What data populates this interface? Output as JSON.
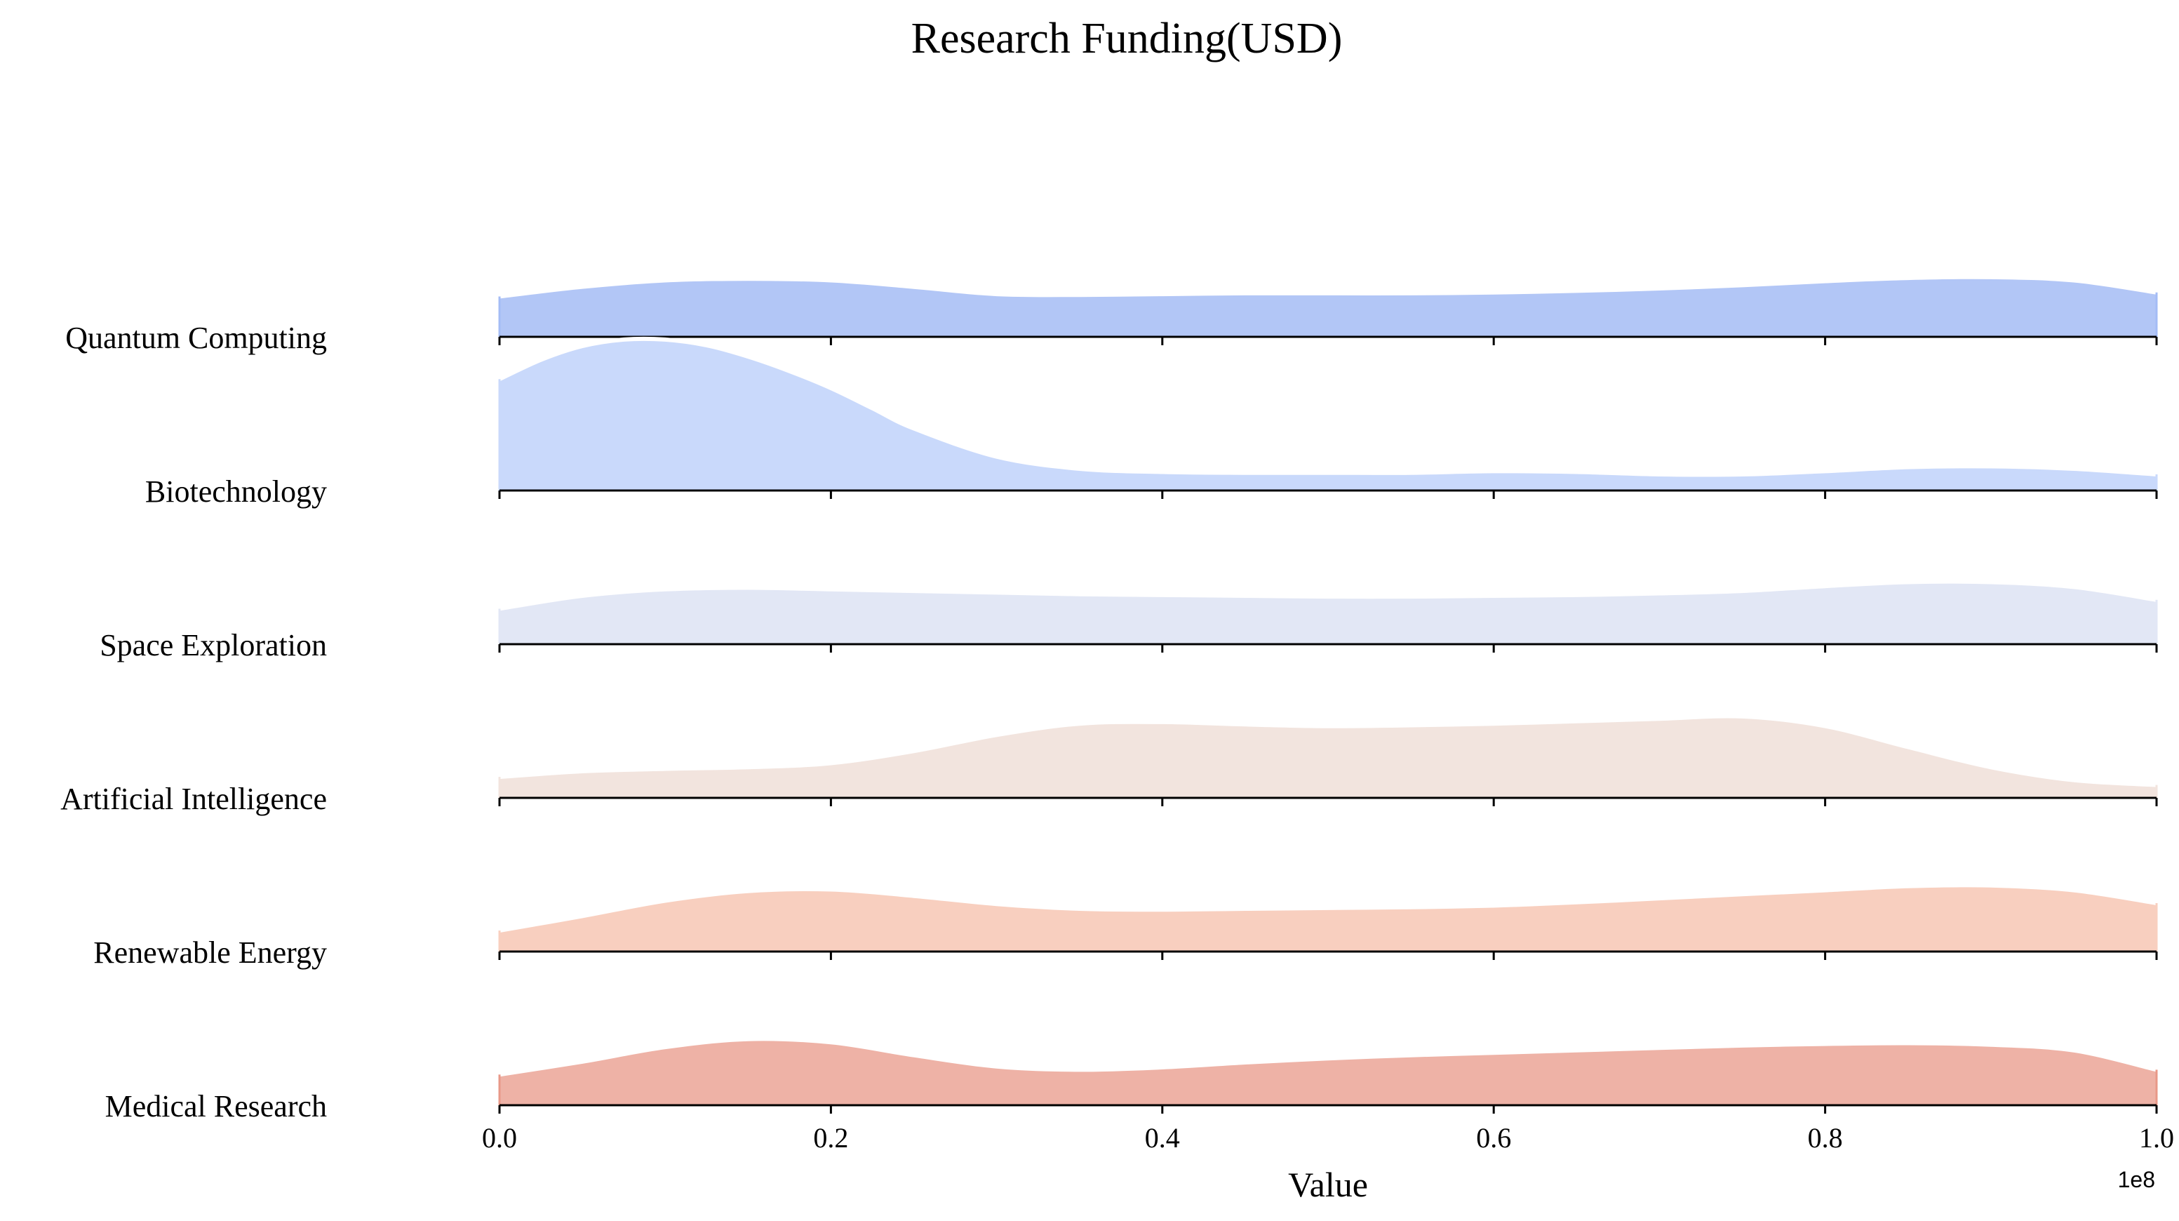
{
  "chart_data": {
    "type": "ridgeline",
    "title": "Research Funding(USD)",
    "xlabel": "Value",
    "x_offset_label": "1e8",
    "xlim": [
      0,
      100000000
    ],
    "x_ticks": [
      0,
      20000000,
      40000000,
      60000000,
      80000000,
      100000000
    ],
    "x_tick_labels": [
      "0.0",
      "0.2",
      "0.4",
      "0.6",
      "0.8",
      "1.0"
    ],
    "series": [
      {
        "name": "Quantum Computing",
        "color": "#a4bcf5",
        "fill_opacity": 0.85,
        "x": [
          0,
          5000000,
          10000000,
          15000000,
          20000000,
          25000000,
          30000000,
          35000000,
          40000000,
          45000000,
          50000000,
          55000000,
          60000000,
          65000000,
          70000000,
          75000000,
          80000000,
          85000000,
          90000000,
          95000000,
          100000000
        ],
        "density": [
          0.5,
          0.62,
          0.7,
          0.72,
          0.7,
          0.62,
          0.53,
          0.52,
          0.53,
          0.54,
          0.54,
          0.54,
          0.55,
          0.57,
          0.6,
          0.64,
          0.69,
          0.73,
          0.74,
          0.7,
          0.55
        ]
      },
      {
        "name": "Biotechnology",
        "color": "#c9d9fb",
        "fill_opacity": 1,
        "x": [
          0,
          2500000,
          5000000,
          7500000,
          10000000,
          12500000,
          15000000,
          17500000,
          20000000,
          22500000,
          25000000,
          30000000,
          35000000,
          40000000,
          45000000,
          50000000,
          55000000,
          60000000,
          65000000,
          70000000,
          75000000,
          80000000,
          85000000,
          90000000,
          95000000,
          100000000
        ],
        "density": [
          1.38,
          1.62,
          1.79,
          1.87,
          1.87,
          1.8,
          1.66,
          1.48,
          1.27,
          1.02,
          0.77,
          0.42,
          0.27,
          0.23,
          0.22,
          0.22,
          0.22,
          0.24,
          0.23,
          0.2,
          0.2,
          0.24,
          0.29,
          0.3,
          0.27,
          0.2
        ]
      },
      {
        "name": "Space Exploration",
        "color": "#e2e7f5",
        "fill_opacity": 1,
        "x": [
          0,
          5000000,
          10000000,
          15000000,
          20000000,
          25000000,
          30000000,
          35000000,
          40000000,
          45000000,
          50000000,
          55000000,
          60000000,
          65000000,
          70000000,
          75000000,
          80000000,
          85000000,
          90000000,
          95000000,
          100000000
        ],
        "density": [
          0.44,
          0.6,
          0.68,
          0.7,
          0.68,
          0.66,
          0.64,
          0.62,
          0.61,
          0.6,
          0.59,
          0.59,
          0.6,
          0.61,
          0.63,
          0.66,
          0.72,
          0.77,
          0.77,
          0.71,
          0.55
        ]
      },
      {
        "name": "Artificial Intelligence",
        "color": "#f2e4de",
        "fill_opacity": 1,
        "x": [
          0,
          5000000,
          10000000,
          15000000,
          20000000,
          25000000,
          30000000,
          35000000,
          40000000,
          45000000,
          50000000,
          55000000,
          60000000,
          65000000,
          70000000,
          75000000,
          80000000,
          85000000,
          90000000,
          95000000,
          100000000
        ],
        "density": [
          0.26,
          0.33,
          0.36,
          0.38,
          0.43,
          0.58,
          0.78,
          0.92,
          0.94,
          0.91,
          0.89,
          0.9,
          0.92,
          0.95,
          0.98,
          1.01,
          0.89,
          0.63,
          0.38,
          0.22,
          0.16
        ]
      },
      {
        "name": "Renewable Energy",
        "color": "#f8cfbf",
        "fill_opacity": 1,
        "x": [
          0,
          5000000,
          10000000,
          15000000,
          20000000,
          25000000,
          30000000,
          35000000,
          40000000,
          45000000,
          50000000,
          55000000,
          60000000,
          65000000,
          70000000,
          75000000,
          80000000,
          85000000,
          90000000,
          95000000,
          100000000
        ],
        "density": [
          0.26,
          0.44,
          0.63,
          0.75,
          0.77,
          0.69,
          0.59,
          0.53,
          0.52,
          0.53,
          0.54,
          0.55,
          0.57,
          0.61,
          0.66,
          0.71,
          0.76,
          0.81,
          0.82,
          0.76,
          0.6
        ]
      },
      {
        "name": "Medical Research",
        "color": "#e89888",
        "fill_opacity": 0.75,
        "x": [
          0,
          5000000,
          10000000,
          15000000,
          20000000,
          25000000,
          30000000,
          35000000,
          40000000,
          45000000,
          50000000,
          55000000,
          60000000,
          65000000,
          70000000,
          75000000,
          80000000,
          85000000,
          90000000,
          95000000,
          100000000
        ],
        "density": [
          0.38,
          0.54,
          0.72,
          0.82,
          0.78,
          0.62,
          0.48,
          0.44,
          0.47,
          0.53,
          0.58,
          0.62,
          0.65,
          0.68,
          0.71,
          0.74,
          0.76,
          0.77,
          0.75,
          0.68,
          0.44
        ]
      }
    ]
  }
}
